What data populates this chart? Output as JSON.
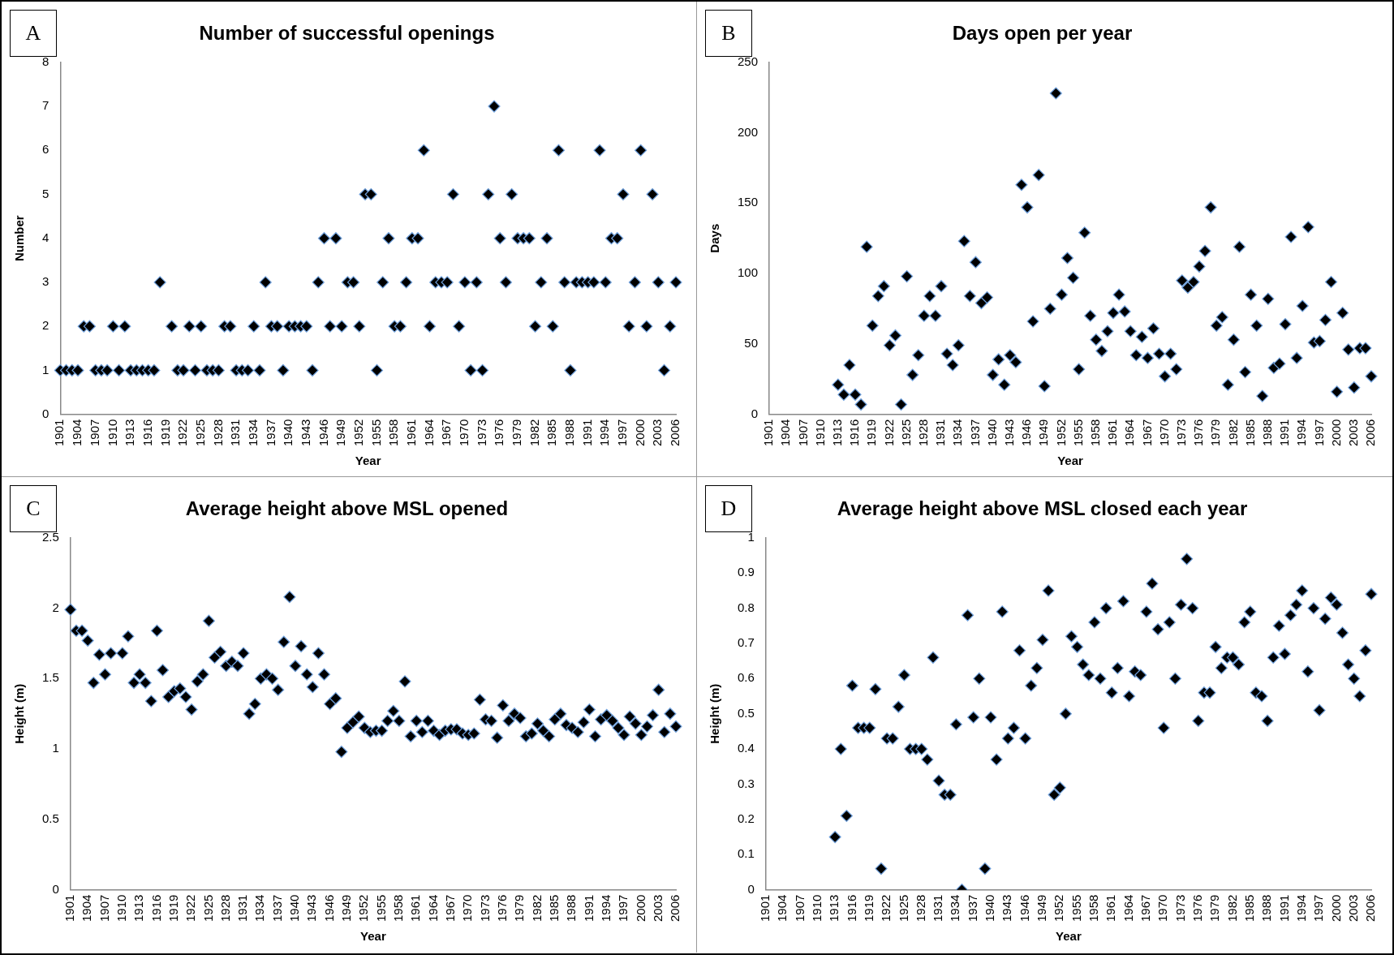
{
  "chart_data": [
    {
      "type": "scatter",
      "title": "Number of successful openings",
      "xlabel": "Year",
      "ylabel": "Number",
      "annotations": [
        "A"
      ],
      "marker": "diamond",
      "legend": false,
      "grid": false,
      "color": "#000000",
      "categories": [
        "1901",
        null,
        null,
        "1904",
        null,
        null,
        "1907",
        null,
        null,
        "1910",
        null,
        null,
        "1913",
        null,
        null,
        "1916",
        null,
        null,
        "1919",
        null,
        null,
        "1922",
        null,
        null,
        "1925",
        null,
        null,
        "1928",
        null,
        null,
        "1931",
        null,
        null,
        "1934",
        null,
        null,
        "1937",
        null,
        null,
        "1940",
        null,
        null,
        "1943",
        null,
        null,
        "1946",
        null,
        null,
        "1949",
        null,
        null,
        "1952",
        null,
        null,
        "1955",
        null,
        null,
        "1958",
        null,
        null,
        "1961",
        null,
        null,
        "1964",
        null,
        null,
        "1967",
        null,
        null,
        "1970",
        null,
        null,
        "1973",
        null,
        null,
        "1976",
        null,
        null,
        "1979",
        null,
        null,
        "1982",
        null,
        null,
        "1985",
        null,
        null,
        "1988",
        null,
        null,
        "1991",
        null,
        null,
        "1994",
        null,
        null,
        "1997",
        null,
        null,
        "2000",
        null,
        null,
        "2003",
        null,
        null,
        "2006"
      ],
      "values": [
        1,
        1,
        1,
        1,
        2,
        2,
        1,
        1,
        1,
        2,
        1,
        2,
        1,
        1,
        1,
        1,
        1,
        3,
        null,
        2,
        1,
        1,
        2,
        1,
        2,
        1,
        1,
        1,
        2,
        2,
        1,
        1,
        1,
        2,
        1,
        3,
        2,
        2,
        1,
        2,
        2,
        2,
        2,
        1,
        3,
        4,
        2,
        4,
        2,
        3,
        3,
        2,
        5,
        5,
        1,
        3,
        4,
        2,
        2,
        3,
        4,
        4,
        6,
        2,
        3,
        3,
        3,
        5,
        2,
        3,
        1,
        3,
        1,
        5,
        7,
        4,
        3,
        5,
        4,
        4,
        4,
        2,
        3,
        4,
        2,
        6,
        3,
        1,
        3,
        3,
        3,
        3,
        6,
        3,
        4,
        4,
        5,
        2,
        3,
        6,
        2,
        5,
        3,
        1,
        2,
        3
      ],
      "ylim": [
        0,
        8
      ],
      "yticks": [
        0,
        1,
        2,
        3,
        4,
        5,
        6,
        7,
        8
      ]
    },
    {
      "type": "scatter",
      "title": "Days open per year",
      "xlabel": "Year",
      "ylabel": "Days",
      "annotations": [
        "B"
      ],
      "marker": "diamond",
      "legend": false,
      "grid": false,
      "color": "#000000",
      "categories": [
        "1901",
        null,
        null,
        "1904",
        null,
        null,
        "1907",
        null,
        null,
        "1910",
        null,
        null,
        "1913",
        null,
        null,
        "1916",
        null,
        null,
        "1919",
        null,
        null,
        "1922",
        null,
        null,
        "1925",
        null,
        null,
        "1928",
        null,
        null,
        "1931",
        null,
        null,
        "1934",
        null,
        null,
        "1937",
        null,
        null,
        "1940",
        null,
        null,
        "1943",
        null,
        null,
        "1946",
        null,
        null,
        "1949",
        null,
        null,
        "1952",
        null,
        null,
        "1955",
        null,
        null,
        "1958",
        null,
        null,
        "1961",
        null,
        null,
        "1964",
        null,
        null,
        "1967",
        null,
        null,
        "1970",
        null,
        null,
        "1973",
        null,
        null,
        "1976",
        null,
        null,
        "1979",
        null,
        null,
        "1982",
        null,
        null,
        "1985",
        null,
        null,
        "1988",
        null,
        null,
        "1991",
        null,
        null,
        "1994",
        null,
        null,
        "1997",
        null,
        null,
        "2000",
        null,
        null,
        "2003",
        null,
        null,
        "2006"
      ],
      "values": [
        null,
        null,
        null,
        null,
        null,
        null,
        null,
        null,
        null,
        null,
        null,
        null,
        21,
        14,
        35,
        14,
        7,
        119,
        63,
        84,
        91,
        49,
        56,
        7,
        98,
        28,
        42,
        70,
        84,
        70,
        91,
        43,
        35,
        49,
        123,
        84,
        108,
        79,
        83,
        28,
        39,
        21,
        42,
        37,
        163,
        147,
        66,
        170,
        20,
        75,
        228,
        85,
        111,
        97,
        32,
        129,
        70,
        53,
        45,
        59,
        72,
        85,
        73,
        59,
        42,
        55,
        40,
        61,
        43,
        27,
        43,
        32,
        95,
        90,
        94,
        105,
        116,
        147,
        63,
        69,
        21,
        53,
        119,
        30,
        85,
        63,
        13,
        82,
        33,
        36,
        64,
        126,
        40,
        77,
        133,
        51,
        52,
        67,
        94,
        16,
        72,
        46,
        19,
        47,
        47,
        27
      ],
      "ylim": [
        0,
        250
      ],
      "yticks": [
        0,
        50,
        100,
        150,
        200,
        250
      ]
    },
    {
      "type": "scatter",
      "title": "Average height above MSL opened",
      "xlabel": "Year",
      "ylabel": "Height (m)",
      "annotations": [
        "C"
      ],
      "marker": "diamond",
      "legend": false,
      "grid": false,
      "color": "#000000",
      "categories": [
        "1901",
        null,
        null,
        "1904",
        null,
        null,
        "1907",
        null,
        null,
        "1910",
        null,
        null,
        "1913",
        null,
        null,
        "1916",
        null,
        null,
        "1919",
        null,
        null,
        "1922",
        null,
        null,
        "1925",
        null,
        null,
        "1928",
        null,
        null,
        "1931",
        null,
        null,
        "1934",
        null,
        null,
        "1937",
        null,
        null,
        "1940",
        null,
        null,
        "1943",
        null,
        null,
        "1946",
        null,
        null,
        "1949",
        null,
        null,
        "1952",
        null,
        null,
        "1955",
        null,
        null,
        "1958",
        null,
        null,
        "1961",
        null,
        null,
        "1964",
        null,
        null,
        "1967",
        null,
        null,
        "1970",
        null,
        null,
        "1973",
        null,
        null,
        "1976",
        null,
        null,
        "1979",
        null,
        null,
        "1982",
        null,
        null,
        "1985",
        null,
        null,
        "1988",
        null,
        null,
        "1991",
        null,
        null,
        "1994",
        null,
        null,
        "1997",
        null,
        null,
        "2000",
        null,
        null,
        "2003",
        null,
        null,
        "2006"
      ],
      "values": [
        1.99,
        1.84,
        1.84,
        1.77,
        1.47,
        1.67,
        1.53,
        1.68,
        null,
        1.68,
        1.8,
        1.47,
        1.53,
        1.47,
        1.34,
        1.84,
        1.56,
        1.37,
        1.41,
        1.43,
        1.37,
        1.28,
        1.48,
        1.53,
        1.91,
        1.65,
        1.69,
        1.59,
        1.62,
        1.59,
        1.68,
        1.25,
        1.32,
        1.5,
        1.53,
        1.5,
        1.42,
        1.76,
        2.08,
        1.59,
        1.73,
        1.53,
        1.44,
        1.68,
        1.53,
        1.32,
        1.36,
        0.98,
        1.15,
        1.19,
        1.23,
        1.15,
        1.12,
        1.13,
        1.13,
        1.2,
        1.27,
        1.2,
        1.48,
        1.09,
        1.2,
        1.12,
        1.2,
        1.13,
        1.1,
        1.13,
        1.14,
        1.14,
        1.11,
        1.1,
        1.11,
        1.35,
        1.21,
        1.2,
        1.08,
        1.31,
        1.2,
        1.25,
        1.22,
        1.09,
        1.11,
        1.18,
        1.13,
        1.09,
        1.21,
        1.25,
        1.17,
        1.15,
        1.12,
        1.19,
        1.28,
        1.09,
        1.21,
        1.24,
        1.2,
        1.15,
        1.1,
        1.23,
        1.18,
        1.1,
        1.16,
        1.24,
        1.42,
        1.12,
        1.25,
        1.16
      ],
      "ylim": [
        0,
        2.5
      ],
      "yticks": [
        0,
        0.5,
        1,
        1.5,
        2,
        2.5
      ]
    },
    {
      "type": "scatter",
      "title": "Average height above MSL closed each year",
      "xlabel": "Year",
      "ylabel": "Height (m)",
      "annotations": [
        "D"
      ],
      "marker": "diamond",
      "legend": false,
      "grid": false,
      "color": "#000000",
      "categories": [
        "1901",
        null,
        null,
        "1904",
        null,
        null,
        "1907",
        null,
        null,
        "1910",
        null,
        null,
        "1913",
        null,
        null,
        "1916",
        null,
        null,
        "1919",
        null,
        null,
        "1922",
        null,
        null,
        "1925",
        null,
        null,
        "1928",
        null,
        null,
        "1931",
        null,
        null,
        "1934",
        null,
        null,
        "1937",
        null,
        null,
        "1940",
        null,
        null,
        "1943",
        null,
        null,
        "1946",
        null,
        null,
        "1949",
        null,
        null,
        "1952",
        null,
        null,
        "1955",
        null,
        null,
        "1958",
        null,
        null,
        "1961",
        null,
        null,
        "1964",
        null,
        null,
        "1967",
        null,
        null,
        "1970",
        null,
        null,
        "1973",
        null,
        null,
        "1976",
        null,
        null,
        "1979",
        null,
        null,
        "1982",
        null,
        null,
        "1985",
        null,
        null,
        "1988",
        null,
        null,
        "1991",
        null,
        null,
        "1994",
        null,
        null,
        "1997",
        null,
        null,
        "2000",
        null,
        null,
        "2003",
        null,
        null,
        "2006"
      ],
      "values": [
        null,
        null,
        null,
        null,
        null,
        null,
        null,
        null,
        null,
        null,
        null,
        null,
        0.15,
        0.4,
        0.21,
        0.58,
        0.46,
        0.46,
        0.46,
        0.57,
        0.06,
        0.43,
        0.43,
        0.52,
        0.61,
        0.4,
        0.4,
        0.4,
        0.37,
        0.66,
        0.31,
        0.27,
        0.27,
        0.47,
        0.0,
        0.78,
        0.49,
        0.6,
        0.06,
        0.49,
        0.37,
        0.79,
        0.43,
        0.46,
        0.68,
        0.43,
        0.58,
        0.63,
        0.71,
        0.85,
        0.27,
        0.29,
        0.5,
        0.72,
        0.69,
        0.64,
        0.61,
        0.76,
        0.6,
        0.8,
        0.56,
        0.63,
        0.82,
        0.55,
        0.62,
        0.61,
        0.79,
        0.87,
        0.74,
        0.46,
        0.76,
        0.6,
        0.81,
        0.94,
        0.8,
        0.48,
        0.56,
        0.56,
        0.69,
        0.63,
        0.66,
        0.66,
        0.64,
        0.76,
        0.79,
        0.56,
        0.55,
        0.48,
        0.66,
        0.75,
        0.67,
        0.78,
        0.81,
        0.85,
        0.62,
        0.8,
        0.51,
        0.77,
        0.83,
        0.81,
        0.73,
        0.64,
        0.6,
        0.55,
        0.68,
        0.84
      ],
      "ylim": [
        0,
        1
      ],
      "yticks": [
        0,
        0.1,
        0.2,
        0.3,
        0.4,
        0.5,
        0.6,
        0.7,
        0.8,
        0.9,
        1
      ]
    }
  ]
}
